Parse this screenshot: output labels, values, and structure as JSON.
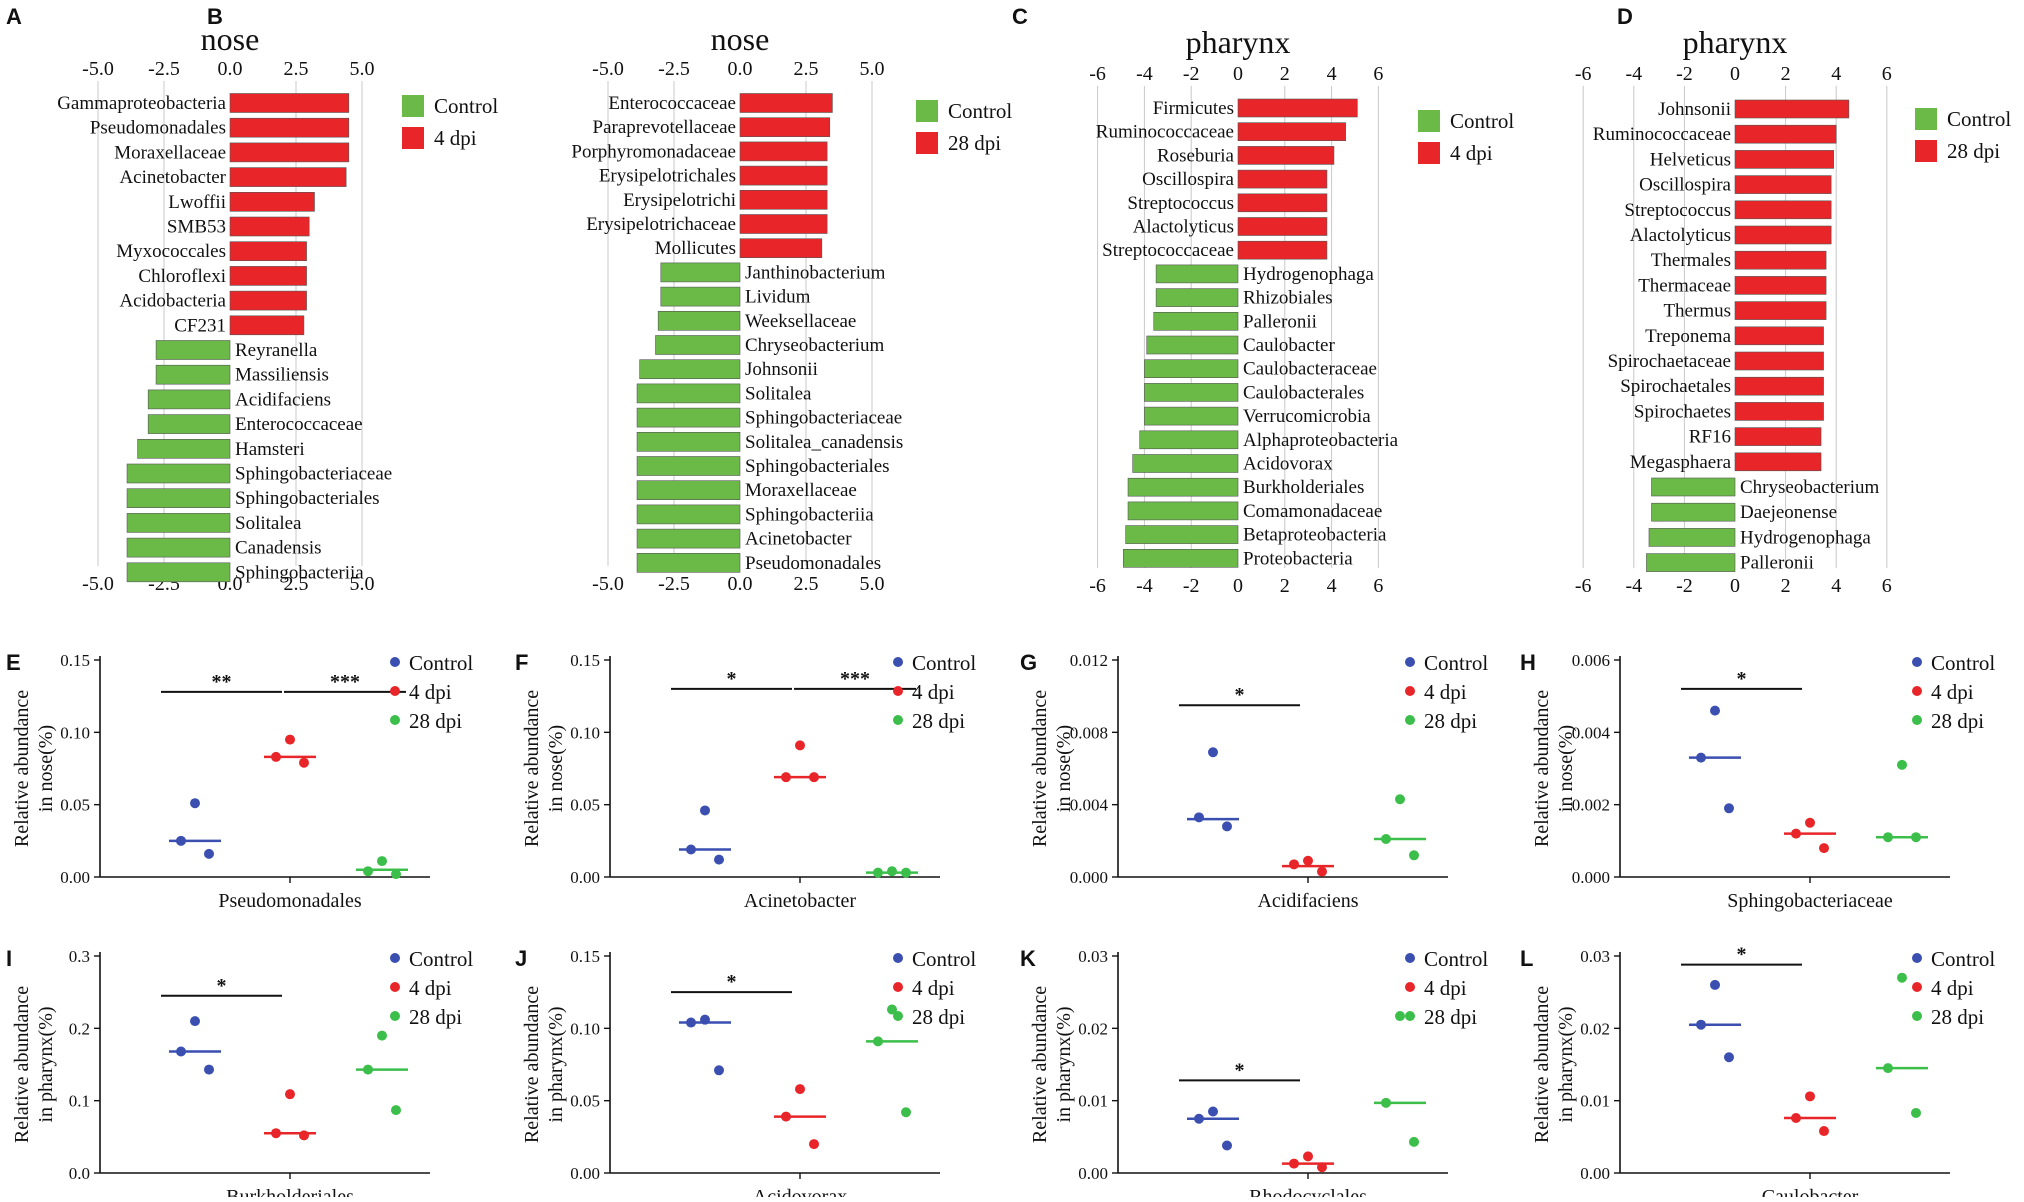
{
  "figure_caption": "LEfSe and relative abundance of nose and pharynx microbiota",
  "colors": {
    "control_bar": "#6BBA47",
    "dpi_bar": "#E8262A",
    "control_dot": "#3A4FB0",
    "dpi4_dot": "#E8262A",
    "dpi28_dot": "#3BBF4A",
    "grid": "#c8c8c8"
  },
  "chart_data": [
    {
      "panel": "A",
      "type": "bar",
      "orientation": "horizontal",
      "title": "nose",
      "ticks": [
        "-5.0",
        "-2.5",
        "0.0",
        "2.5",
        "5.0"
      ],
      "tick_values": [
        -5,
        -2.5,
        0,
        2.5,
        5
      ],
      "xlim": [
        -5.0,
        5.0
      ],
      "legend": [
        "Control",
        "4 dpi"
      ],
      "categories": [
        "Gammaproteobacteria",
        "Pseudomonadales",
        "Moraxellaceae",
        "Acinetobacter",
        "Lwoffii",
        "SMB53",
        "Myxococcales",
        "Chloroflexi",
        "Acidobacteria",
        "CF231",
        "Reyranella",
        "Massiliensis",
        "Acidifaciens",
        "Enterococcaceae",
        "Hamsteri",
        "Sphingobacteriaceae",
        "Sphingobacteriales",
        "Solitalea",
        "Canadensis",
        "Sphingobacteriia"
      ],
      "values": [
        4.5,
        4.5,
        4.5,
        4.4,
        3.2,
        3.0,
        2.9,
        2.9,
        2.9,
        2.8,
        -2.8,
        -2.8,
        -3.1,
        -3.1,
        -3.5,
        -3.9,
        -3.9,
        -3.9,
        -3.9,
        -3.9
      ],
      "groups": [
        "4 dpi",
        "4 dpi",
        "4 dpi",
        "4 dpi",
        "4 dpi",
        "4 dpi",
        "4 dpi",
        "4 dpi",
        "4 dpi",
        "4 dpi",
        "Control",
        "Control",
        "Control",
        "Control",
        "Control",
        "Control",
        "Control",
        "Control",
        "Control",
        "Control"
      ]
    },
    {
      "panel": "B",
      "type": "bar",
      "orientation": "horizontal",
      "title": "nose",
      "ticks": [
        "-5.0",
        "-2.5",
        "0.0",
        "2.5",
        "5.0"
      ],
      "tick_values": [
        -5,
        -2.5,
        0,
        2.5,
        5
      ],
      "xlim": [
        -5.0,
        5.0
      ],
      "legend": [
        "Control",
        "28 dpi"
      ],
      "categories": [
        "Enterococcaceae",
        "Paraprevotellaceae",
        "Porphyromonadaceae",
        "Erysipelotrichales",
        "Erysipelotrichi",
        "Erysipelotrichaceae",
        "Mollicutes",
        "Janthinobacterium",
        "Lividum",
        "Weeksellaceae",
        "Chryseobacterium",
        "Johnsonii",
        "Solitalea",
        "Sphingobacteriaceae",
        "Solitalea_canadensis",
        "Sphingobacteriales",
        "Moraxellaceae",
        "Sphingobacteriia",
        "Acinetobacter",
        "Pseudomonadales"
      ],
      "values": [
        3.5,
        3.4,
        3.3,
        3.3,
        3.3,
        3.3,
        3.1,
        -3.0,
        -3.0,
        -3.1,
        -3.2,
        -3.8,
        -3.9,
        -3.9,
        -3.9,
        -3.9,
        -3.9,
        -3.9,
        -3.9,
        -3.9
      ],
      "groups": [
        "28 dpi",
        "28 dpi",
        "28 dpi",
        "28 dpi",
        "28 dpi",
        "28 dpi",
        "28 dpi",
        "Control",
        "Control",
        "Control",
        "Control",
        "Control",
        "Control",
        "Control",
        "Control",
        "Control",
        "Control",
        "Control",
        "Control",
        "Control"
      ]
    },
    {
      "panel": "C",
      "type": "bar",
      "orientation": "horizontal",
      "title": "pharynx",
      "ticks": [
        "-6",
        "-4",
        "-2",
        "0",
        "2",
        "4",
        "6"
      ],
      "tick_values": [
        -6,
        -4,
        -2,
        0,
        2,
        4,
        6
      ],
      "xlim": [
        -6,
        6
      ],
      "legend": [
        "Control",
        "4 dpi"
      ],
      "categories": [
        "Firmicutes",
        "Ruminococcaceae",
        "Roseburia",
        "Oscillospira",
        "Streptococcus",
        "Alactolyticus",
        "Streptococcaceae",
        "Hydrogenophaga",
        "Rhizobiales",
        "Palleronii",
        "Caulobacter",
        "Caulobacteraceae",
        "Caulobacterales",
        "Verrucomicrobia",
        "Alphaproteobacteria",
        "Acidovorax",
        "Burkholderiales",
        "Comamonadaceae",
        "Betaproteobacteria",
        "Proteobacteria"
      ],
      "values": [
        5.1,
        4.6,
        4.1,
        3.8,
        3.8,
        3.8,
        3.8,
        -3.5,
        -3.5,
        -3.6,
        -3.9,
        -4.0,
        -4.0,
        -4.0,
        -4.2,
        -4.5,
        -4.7,
        -4.7,
        -4.8,
        -4.9
      ],
      "groups": [
        "4 dpi",
        "4 dpi",
        "4 dpi",
        "4 dpi",
        "4 dpi",
        "4 dpi",
        "4 dpi",
        "Control",
        "Control",
        "Control",
        "Control",
        "Control",
        "Control",
        "Control",
        "Control",
        "Control",
        "Control",
        "Control",
        "Control",
        "Control"
      ]
    },
    {
      "panel": "D",
      "type": "bar",
      "orientation": "horizontal",
      "title": "pharynx",
      "ticks": [
        "-6",
        "-4",
        "-2",
        "0",
        "2",
        "4",
        "6"
      ],
      "tick_values": [
        -6,
        -4,
        -2,
        0,
        2,
        4,
        6
      ],
      "xlim": [
        -6,
        6
      ],
      "legend": [
        "Control",
        "28 dpi"
      ],
      "categories": [
        "Johnsonii",
        "Ruminococcaceae",
        "Helveticus",
        "Oscillospira",
        "Streptococcus",
        "Alactolyticus",
        "Thermales",
        "Thermaceae",
        "Thermus",
        "Treponema",
        "Spirochaetaceae",
        "Spirochaetales",
        "Spirochaetes",
        "RF16",
        "Megasphaera",
        "Chryseobacterium",
        "Daejeonense",
        "Hydrogenophaga",
        "Palleronii"
      ],
      "values": [
        4.5,
        4.0,
        3.9,
        3.8,
        3.8,
        3.8,
        3.6,
        3.6,
        3.6,
        3.5,
        3.5,
        3.5,
        3.5,
        3.4,
        3.4,
        -3.3,
        -3.3,
        -3.4,
        -3.5
      ],
      "groups": [
        "28 dpi",
        "28 dpi",
        "28 dpi",
        "28 dpi",
        "28 dpi",
        "28 dpi",
        "28 dpi",
        "28 dpi",
        "28 dpi",
        "28 dpi",
        "28 dpi",
        "28 dpi",
        "28 dpi",
        "28 dpi",
        "28 dpi",
        "Control",
        "Control",
        "Control",
        "Control"
      ]
    },
    {
      "panel": "E",
      "type": "scatter",
      "ylabel": [
        "Relative abundance",
        "in nose(%)"
      ],
      "xlabel": "Pseudomonadales",
      "yticks": [
        "0.00",
        "0.05",
        "0.10",
        "0.15"
      ],
      "ytick_values": [
        0,
        0.05,
        0.1,
        0.15
      ],
      "ylim": [
        0,
        0.15
      ],
      "legend": [
        "Control",
        "4 dpi",
        "28 dpi"
      ],
      "series": [
        {
          "name": "Control",
          "points": [
            0.051,
            0.025,
            0.016
          ],
          "median": 0.025
        },
        {
          "name": "4 dpi",
          "points": [
            0.095,
            0.083,
            0.079
          ],
          "median": 0.083
        },
        {
          "name": "28 dpi",
          "points": [
            0.011,
            0.004,
            0.002
          ],
          "median": 0.005
        }
      ],
      "significance": [
        {
          "from": 0,
          "to": 1,
          "label": "**",
          "y": 0.128
        },
        {
          "from": 1,
          "to": 2,
          "label": "***",
          "y": 0.128
        }
      ]
    },
    {
      "panel": "F",
      "type": "scatter",
      "ylabel": [
        "Relative abundance",
        "in nose(%)"
      ],
      "xlabel": "Acinetobacter",
      "yticks": [
        "0.00",
        "0.05",
        "0.10",
        "0.15"
      ],
      "ytick_values": [
        0,
        0.05,
        0.1,
        0.15
      ],
      "ylim": [
        0,
        0.15
      ],
      "legend": [
        "Control",
        "4 dpi",
        "28 dpi"
      ],
      "series": [
        {
          "name": "Control",
          "points": [
            0.046,
            0.019,
            0.012
          ],
          "median": 0.019
        },
        {
          "name": "4 dpi",
          "points": [
            0.091,
            0.069,
            0.069
          ],
          "median": 0.069
        },
        {
          "name": "28 dpi",
          "points": [
            0.004,
            0.003,
            0.003
          ],
          "median": 0.003
        }
      ],
      "significance": [
        {
          "from": 0,
          "to": 1,
          "label": "*",
          "y": 0.13
        },
        {
          "from": 1,
          "to": 2,
          "label": "***",
          "y": 0.13
        }
      ]
    },
    {
      "panel": "G",
      "type": "scatter",
      "ylabel": [
        "Relative abundance",
        "in nose(%)"
      ],
      "xlabel": "Acidifaciens",
      "yticks": [
        "0.000",
        "0.004",
        "0.008",
        "0.012"
      ],
      "ytick_values": [
        0,
        0.004,
        0.008,
        0.012
      ],
      "ylim": [
        0,
        0.012
      ],
      "legend": [
        "Control",
        "4 dpi",
        "28 dpi"
      ],
      "series": [
        {
          "name": "Control",
          "points": [
            0.0069,
            0.0033,
            0.0028
          ],
          "median": 0.0032
        },
        {
          "name": "4 dpi",
          "points": [
            0.0009,
            0.0007,
            0.0003
          ],
          "median": 0.0006
        },
        {
          "name": "28 dpi",
          "points": [
            0.0043,
            0.0021,
            0.0012
          ],
          "median": 0.0021
        }
      ],
      "significance": [
        {
          "from": 0,
          "to": 1,
          "label": "*",
          "y": 0.0095
        }
      ]
    },
    {
      "panel": "H",
      "type": "scatter",
      "ylabel": [
        "Relative abundance",
        "in nose(%)"
      ],
      "xlabel": "Sphingobacteriaceae",
      "yticks": [
        "0.000",
        "0.002",
        "0.004",
        "0.006"
      ],
      "ytick_values": [
        0,
        0.002,
        0.004,
        0.006
      ],
      "ylim": [
        0,
        0.006
      ],
      "legend": [
        "Control",
        "4 dpi",
        "28 dpi"
      ],
      "series": [
        {
          "name": "Control",
          "points": [
            0.0046,
            0.0033,
            0.0019
          ],
          "median": 0.0033
        },
        {
          "name": "4 dpi",
          "points": [
            0.0015,
            0.0012,
            0.0008
          ],
          "median": 0.0012
        },
        {
          "name": "28 dpi",
          "points": [
            0.0031,
            0.0011,
            0.0011
          ],
          "median": 0.0011
        }
      ],
      "significance": [
        {
          "from": 0,
          "to": 1,
          "label": "*",
          "y": 0.0052
        }
      ]
    },
    {
      "panel": "I",
      "type": "scatter",
      "ylabel": [
        "Relative abundance",
        "in pharynx(%)"
      ],
      "xlabel": "Burkholderiales",
      "yticks": [
        "0.0",
        "0.1",
        "0.2",
        "0.3"
      ],
      "ytick_values": [
        0,
        0.1,
        0.2,
        0.3
      ],
      "ylim": [
        0,
        0.3
      ],
      "legend": [
        "Control",
        "4 dpi",
        "28 dpi"
      ],
      "series": [
        {
          "name": "Control",
          "points": [
            0.21,
            0.168,
            0.143
          ],
          "median": 0.168
        },
        {
          "name": "4 dpi",
          "points": [
            0.109,
            0.055,
            0.052
          ],
          "median": 0.055
        },
        {
          "name": "28 dpi",
          "points": [
            0.19,
            0.143,
            0.087
          ],
          "median": 0.143
        }
      ],
      "significance": [
        {
          "from": 0,
          "to": 1,
          "label": "*",
          "y": 0.245
        }
      ]
    },
    {
      "panel": "J",
      "type": "scatter",
      "ylabel": [
        "Relative abundance",
        "in pharynx(%)"
      ],
      "xlabel": "Acidovorax",
      "yticks": [
        "0.00",
        "0.05",
        "0.10",
        "0.15"
      ],
      "ytick_values": [
        0,
        0.05,
        0.1,
        0.15
      ],
      "ylim": [
        0,
        0.15
      ],
      "legend": [
        "Control",
        "4 dpi",
        "28 dpi"
      ],
      "series": [
        {
          "name": "Control",
          "points": [
            0.106,
            0.104,
            0.071
          ],
          "median": 0.104
        },
        {
          "name": "4 dpi",
          "points": [
            0.058,
            0.039,
            0.02
          ],
          "median": 0.039
        },
        {
          "name": "28 dpi",
          "points": [
            0.113,
            0.091,
            0.042
          ],
          "median": 0.091
        }
      ],
      "significance": [
        {
          "from": 0,
          "to": 1,
          "label": "*",
          "y": 0.125
        }
      ]
    },
    {
      "panel": "K",
      "type": "scatter",
      "ylabel": [
        "Relative abundance",
        "in pharynx(%)"
      ],
      "xlabel": "Rhodocyclales",
      "yticks": [
        "0.00",
        "0.01",
        "0.02",
        "0.03"
      ],
      "ytick_values": [
        0,
        0.01,
        0.02,
        0.03
      ],
      "ylim": [
        0,
        0.03
      ],
      "legend": [
        "Control",
        "4 dpi",
        "28 dpi"
      ],
      "series": [
        {
          "name": "Control",
          "points": [
            0.0085,
            0.0075,
            0.0038
          ],
          "median": 0.0075
        },
        {
          "name": "4 dpi",
          "points": [
            0.0023,
            0.0013,
            0.0008
          ],
          "median": 0.0013
        },
        {
          "name": "28 dpi",
          "points": [
            0.0217,
            0.0097,
            0.0043
          ],
          "median": 0.0097
        }
      ],
      "significance": [
        {
          "from": 0,
          "to": 1,
          "label": "*",
          "y": 0.0128
        }
      ]
    },
    {
      "panel": "L",
      "type": "scatter",
      "ylabel": [
        "Relative abundance",
        "in pharynx(%)"
      ],
      "xlabel": "Caulobacter",
      "yticks": [
        "0.00",
        "0.01",
        "0.02",
        "0.03"
      ],
      "ytick_values": [
        0,
        0.01,
        0.02,
        0.03
      ],
      "ylim": [
        0,
        0.03
      ],
      "legend": [
        "Control",
        "4 dpi",
        "28 dpi"
      ],
      "series": [
        {
          "name": "Control",
          "points": [
            0.026,
            0.0205,
            0.016
          ],
          "median": 0.0205
        },
        {
          "name": "4 dpi",
          "points": [
            0.0106,
            0.0076,
            0.0058
          ],
          "median": 0.0076
        },
        {
          "name": "28 dpi",
          "points": [
            0.027,
            0.0145,
            0.0083
          ],
          "median": 0.0145
        }
      ],
      "significance": [
        {
          "from": 0,
          "to": 1,
          "label": "*",
          "y": 0.0288
        }
      ]
    }
  ]
}
